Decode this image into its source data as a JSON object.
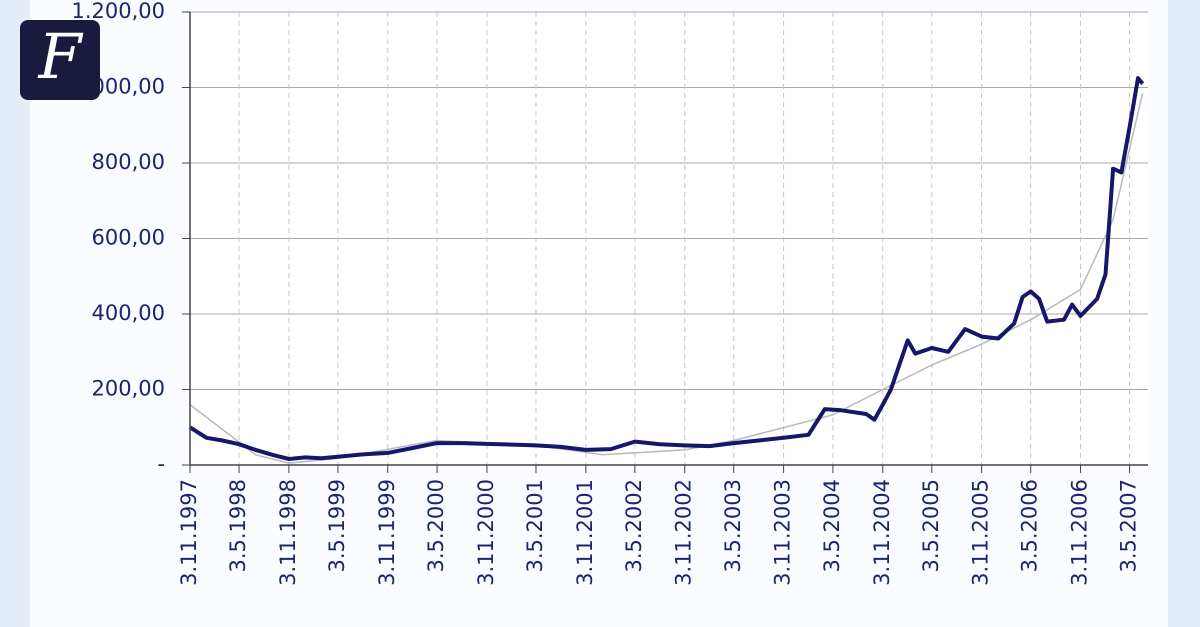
{
  "logo": "F",
  "chart_data": {
    "type": "line",
    "xlim": [
      "1997-11-03",
      "2007-07-10"
    ],
    "ylim": [
      0,
      1200
    ],
    "yticks": [
      {
        "value": 0,
        "label": "-"
      },
      {
        "value": 200,
        "label": "200,00"
      },
      {
        "value": 400,
        "label": "400,00"
      },
      {
        "value": 600,
        "label": "600,00"
      },
      {
        "value": 800,
        "label": "800,00"
      },
      {
        "value": 1000,
        "label": "1.000,00"
      },
      {
        "value": 1200,
        "label": "1.200,00"
      }
    ],
    "xticks": [
      {
        "value": "1997-11-03",
        "label": "3.11.1997"
      },
      {
        "value": "1998-05-03",
        "label": "3.5.1998"
      },
      {
        "value": "1998-11-03",
        "label": "3.11.1998"
      },
      {
        "value": "1999-05-03",
        "label": "3.5.1999"
      },
      {
        "value": "1999-11-03",
        "label": "3.11.1999"
      },
      {
        "value": "2000-05-03",
        "label": "3.5.2000"
      },
      {
        "value": "2000-11-03",
        "label": "3.11.2000"
      },
      {
        "value": "2001-05-03",
        "label": "3.5.2001"
      },
      {
        "value": "2001-11-03",
        "label": "3.11.2001"
      },
      {
        "value": "2002-05-03",
        "label": "3.5.2002"
      },
      {
        "value": "2002-11-03",
        "label": "3.11.2002"
      },
      {
        "value": "2003-05-03",
        "label": "3.5.2003"
      },
      {
        "value": "2003-11-03",
        "label": "3.11.2003"
      },
      {
        "value": "2004-05-03",
        "label": "3.5.2004"
      },
      {
        "value": "2004-11-03",
        "label": "3.11.2004"
      },
      {
        "value": "2005-05-03",
        "label": "3.5.2005"
      },
      {
        "value": "2005-11-03",
        "label": "3.11.2005"
      },
      {
        "value": "2006-05-03",
        "label": "3.5.2006"
      },
      {
        "value": "2006-11-03",
        "label": "3.11.2006"
      },
      {
        "value": "2007-05-03",
        "label": "3.5.2007"
      }
    ],
    "grid": true,
    "series": [
      {
        "color": "#16166b",
        "width": 4,
        "x": [
          "1997-11-03",
          "1998-01-03",
          "1998-03-03",
          "1998-05-03",
          "1998-07-03",
          "1998-09-03",
          "1998-11-03",
          "1999-01-03",
          "1999-03-03",
          "1999-05-03",
          "1999-08-03",
          "1999-11-03",
          "2000-02-03",
          "2000-05-03",
          "2000-08-03",
          "2000-11-03",
          "2001-02-03",
          "2001-05-03",
          "2001-08-03",
          "2001-11-03",
          "2002-02-03",
          "2002-05-03",
          "2002-08-03",
          "2002-11-03",
          "2003-02-03",
          "2003-05-03",
          "2003-08-03",
          "2003-11-03",
          "2004-02-03",
          "2004-04-03",
          "2004-06-03",
          "2004-09-03",
          "2004-10-03",
          "2004-11-03",
          "2004-12-03",
          "2005-02-03",
          "2005-03-03",
          "2005-05-03",
          "2005-07-03",
          "2005-09-03",
          "2005-11-03",
          "2006-01-03",
          "2006-03-03",
          "2006-04-03",
          "2006-05-03",
          "2006-06-03",
          "2006-07-03",
          "2006-09-03",
          "2006-10-03",
          "2006-11-03",
          "2007-01-03",
          "2007-02-03",
          "2007-03-03",
          "2007-04-03",
          "2007-05-03",
          "2007-06-03",
          "2007-06-20"
        ],
        "values": [
          100,
          72,
          65,
          55,
          40,
          27,
          16,
          20,
          18,
          22,
          28,
          32,
          45,
          58,
          58,
          56,
          54,
          52,
          48,
          40,
          42,
          62,
          55,
          52,
          50,
          58,
          65,
          72,
          80,
          148,
          145,
          135,
          120,
          160,
          200,
          330,
          295,
          310,
          300,
          360,
          340,
          335,
          375,
          445,
          460,
          440,
          380,
          385,
          425,
          395,
          440,
          505,
          785,
          775,
          895,
          1025,
          1010
        ]
      },
      {
        "color": "#b8b8c0",
        "width": 1.5,
        "x": [
          "1997-11-03",
          "1998-07-03",
          "1998-11-03",
          "1999-05-03",
          "2000-05-03",
          "2001-05-03",
          "2002-01-03",
          "2002-11-03",
          "2003-05-03",
          "2004-05-03",
          "2004-11-03",
          "2005-05-03",
          "2005-11-03",
          "2006-05-03",
          "2006-11-03",
          "2007-03-03",
          "2007-06-20"
        ],
        "values": [
          160,
          27,
          5,
          18,
          65,
          52,
          27,
          40,
          65,
          133,
          200,
          265,
          320,
          385,
          465,
          650,
          985
        ]
      }
    ]
  }
}
